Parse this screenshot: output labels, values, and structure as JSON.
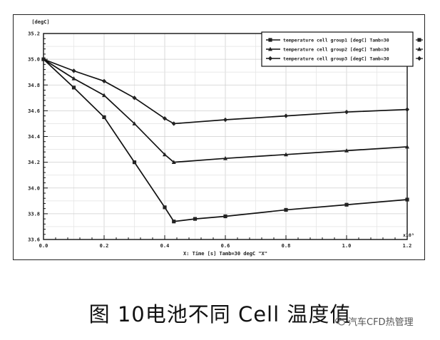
{
  "chart_data": {
    "type": "line",
    "ylabel": "[degC]",
    "xlabel": "X: Time [s] Tamb=30 degC \"X\"",
    "x_multiplier": "x10³",
    "xlim": [
      0,
      1.2
    ],
    "ylim": [
      33.6,
      35.2
    ],
    "x_ticks": [
      "0.0",
      "0.2",
      "0.4",
      "0.6",
      "0.8",
      "1.0",
      "1.2"
    ],
    "y_ticks": [
      "33.6",
      "33.8",
      "34.0",
      "34.2",
      "34.4",
      "34.6",
      "34.8",
      "35.0",
      "35.2"
    ],
    "grid": true,
    "legend_position": "top-right",
    "series": [
      {
        "name": "temperature cell group1 [degC] Tamb=30",
        "x": [
          0.0,
          0.1,
          0.2,
          0.3,
          0.4,
          0.43,
          0.5,
          0.6,
          0.8,
          1.0,
          1.2
        ],
        "y": [
          35.0,
          34.78,
          34.55,
          34.2,
          33.85,
          33.74,
          33.76,
          33.78,
          33.83,
          33.87,
          33.91
        ]
      },
      {
        "name": "temperature cell group2 [degC] Tamb=30",
        "x": [
          0.0,
          0.1,
          0.2,
          0.3,
          0.4,
          0.43,
          0.6,
          0.8,
          1.0,
          1.2
        ],
        "y": [
          35.0,
          34.85,
          34.72,
          34.5,
          34.26,
          34.2,
          34.23,
          34.26,
          34.29,
          34.32
        ]
      },
      {
        "name": "temperature cell group3 [degC] Tamb=30",
        "x": [
          0.0,
          0.1,
          0.2,
          0.3,
          0.4,
          0.43,
          0.6,
          0.8,
          1.0,
          1.2
        ],
        "y": [
          35.0,
          34.91,
          34.83,
          34.7,
          34.54,
          34.5,
          34.53,
          34.56,
          34.59,
          34.61
        ]
      }
    ],
    "markers": [
      "square",
      "triangle",
      "diamond"
    ]
  },
  "caption": {
    "figure_label": "图 10",
    "text": "电池不同 Cell 温度值"
  },
  "watermark": {
    "text": "汽车CFD热管理"
  }
}
